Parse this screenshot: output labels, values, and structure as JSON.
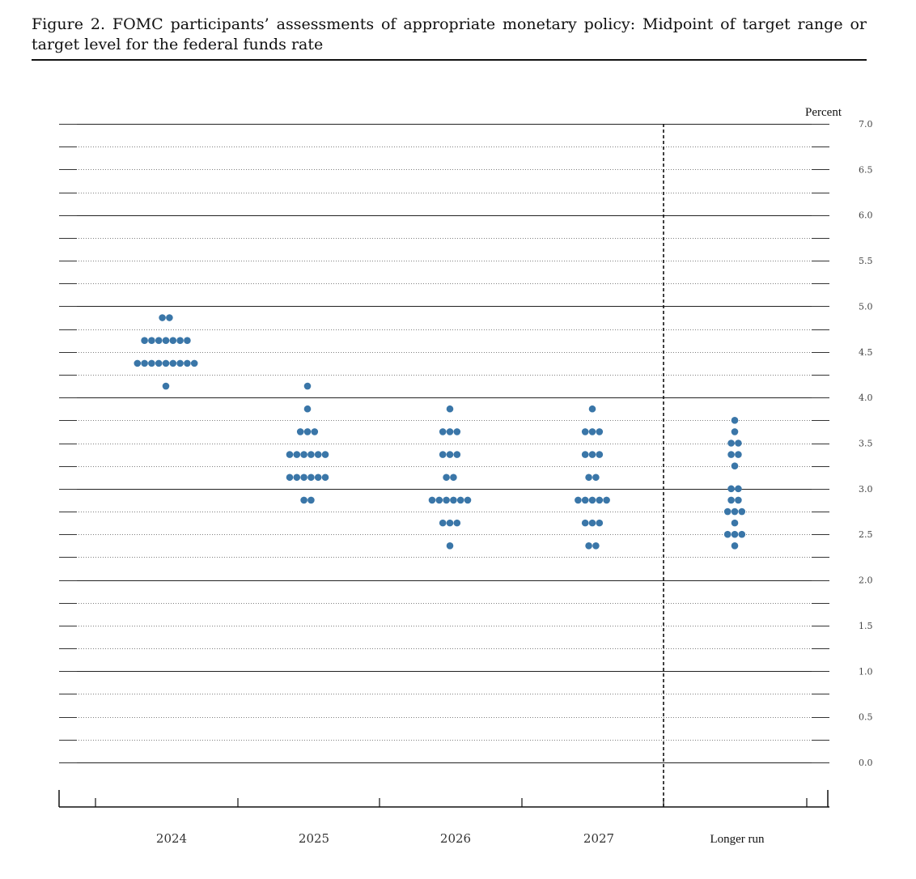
{
  "figure": {
    "title": "Figure 2.  FOMC participants’ assessments of appropriate monetary policy:  Midpoint of target range or target level for the federal funds rate"
  },
  "chart_data": {
    "type": "scatter",
    "subtype": "dot-plot",
    "unit_label": "Percent",
    "ylim": [
      0.0,
      7.0
    ],
    "y_ticks": [
      "7.0",
      "6.5",
      "6.0",
      "5.5",
      "5.0",
      "4.5",
      "4.0",
      "3.5",
      "3.0",
      "2.5",
      "2.0",
      "1.5",
      "1.0",
      "0.5",
      "0.0"
    ],
    "categories": [
      "2024",
      "2025",
      "2026",
      "2027",
      "Longer run"
    ],
    "dot_color": "#3a76a8",
    "series": [
      {
        "category": "2024",
        "counts": [
          {
            "y": 4.875,
            "n": 2
          },
          {
            "y": 4.625,
            "n": 7
          },
          {
            "y": 4.375,
            "n": 9
          },
          {
            "y": 4.125,
            "n": 1
          }
        ]
      },
      {
        "category": "2025",
        "counts": [
          {
            "y": 4.125,
            "n": 1
          },
          {
            "y": 3.875,
            "n": 1
          },
          {
            "y": 3.625,
            "n": 3
          },
          {
            "y": 3.375,
            "n": 6
          },
          {
            "y": 3.125,
            "n": 6
          },
          {
            "y": 2.875,
            "n": 2
          }
        ]
      },
      {
        "category": "2026",
        "counts": [
          {
            "y": 3.875,
            "n": 1
          },
          {
            "y": 3.625,
            "n": 3
          },
          {
            "y": 3.375,
            "n": 3
          },
          {
            "y": 3.125,
            "n": 2
          },
          {
            "y": 2.875,
            "n": 6
          },
          {
            "y": 2.625,
            "n": 3
          },
          {
            "y": 2.375,
            "n": 1
          }
        ]
      },
      {
        "category": "2027",
        "counts": [
          {
            "y": 3.875,
            "n": 1
          },
          {
            "y": 3.625,
            "n": 3
          },
          {
            "y": 3.375,
            "n": 3
          },
          {
            "y": 3.125,
            "n": 2
          },
          {
            "y": 2.875,
            "n": 5
          },
          {
            "y": 2.625,
            "n": 3
          },
          {
            "y": 2.375,
            "n": 2
          }
        ]
      },
      {
        "category": "Longer run",
        "counts": [
          {
            "y": 3.75,
            "n": 1
          },
          {
            "y": 3.625,
            "n": 1
          },
          {
            "y": 3.5,
            "n": 2
          },
          {
            "y": 3.375,
            "n": 2
          },
          {
            "y": 3.25,
            "n": 1
          },
          {
            "y": 3.0,
            "n": 2
          },
          {
            "y": 2.875,
            "n": 2
          },
          {
            "y": 2.75,
            "n": 3
          },
          {
            "y": 2.625,
            "n": 1
          },
          {
            "y": 2.5,
            "n": 3
          },
          {
            "y": 2.375,
            "n": 1
          }
        ]
      }
    ]
  }
}
